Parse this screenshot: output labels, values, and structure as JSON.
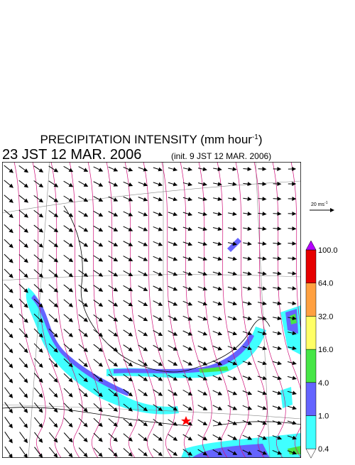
{
  "title": {
    "text": "PRECIPITATION INTENSITY (mm hour",
    "superscript": "-1",
    "suffix": ")"
  },
  "valid_time": "23 JST 12 MAR. 2006",
  "init_time": "(init. 9 JST 12 MAR. 2006)",
  "wind_reference": {
    "text": "20 ms",
    "superscript": "-1"
  },
  "colorbar": {
    "levels": [
      "0.4",
      "1.0",
      "4.0",
      "16.0",
      "32.0",
      "64.0",
      "100.0"
    ],
    "colors": [
      "#40ffff",
      "#6464ff",
      "#46e646",
      "#ffff66",
      "#ffa040",
      "#e60000"
    ],
    "over_color": "#b400ff",
    "under_color": "#ffffff"
  }
}
